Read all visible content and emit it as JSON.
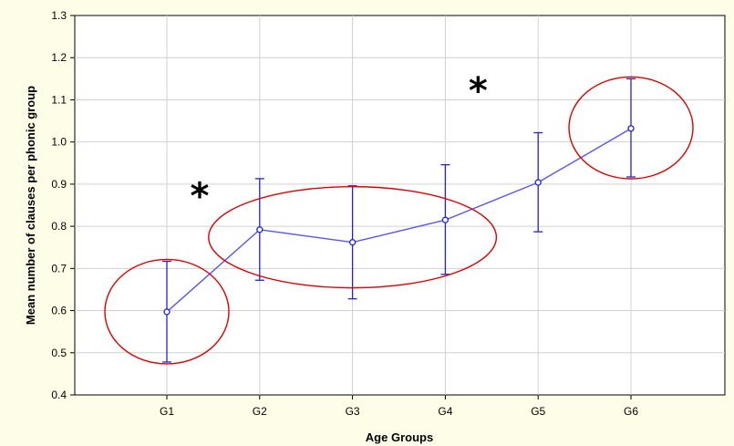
{
  "chart_data": {
    "type": "line",
    "xlabel": "Age Groups",
    "ylabel": "Mean number of clauses per phonic group",
    "categories": [
      "G1",
      "G2",
      "G3",
      "G4",
      "G5",
      "G6"
    ],
    "series": [
      {
        "values": [
          0.597,
          0.792,
          0.762,
          0.815,
          0.904,
          1.032
        ],
        "error_low": [
          0.478,
          0.672,
          0.628,
          0.686,
          0.787,
          0.917
        ],
        "error_high": [
          0.717,
          0.913,
          0.896,
          0.946,
          1.022,
          1.15
        ],
        "color": "#2222dd"
      }
    ],
    "ylim": [
      0.4,
      1.3
    ],
    "yticks": [
      0.4,
      0.5,
      0.6,
      0.7,
      0.8,
      0.9,
      1.0,
      1.1,
      1.2,
      1.3
    ],
    "ytick_labels": [
      "0.4",
      "0.5",
      "0.6",
      "0.7",
      "0.8",
      "0.9",
      "1.0",
      "1.1",
      "1.2",
      "1.3"
    ],
    "grid": true,
    "annotations": [
      {
        "type": "significance-star",
        "text": "*",
        "between": [
          "G1",
          "G2"
        ],
        "y": 0.89
      },
      {
        "type": "significance-star",
        "text": "*",
        "between": [
          "G4",
          "G5"
        ],
        "y": 1.14
      }
    ],
    "highlight_groups": [
      [
        "G1"
      ],
      [
        "G2",
        "G3",
        "G4"
      ],
      [
        "G6"
      ]
    ],
    "highlight_color": "#dd0000",
    "background_color": "#fefee8"
  }
}
